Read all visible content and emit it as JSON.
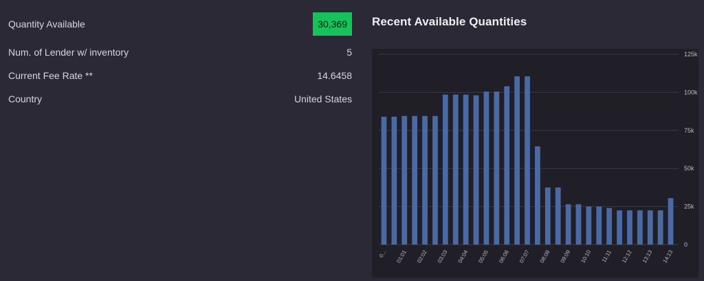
{
  "stats": [
    {
      "label": "Quantity Available",
      "value": "30,369",
      "highlight": true
    },
    {
      "label": "Num. of Lender w/ inventory",
      "value": "5"
    },
    {
      "label": "Current Fee Rate **",
      "value": "14.6458"
    },
    {
      "label": "Country",
      "value": "United States"
    }
  ],
  "colors": {
    "accent": "#16c35b",
    "bar": "#4a6aa6",
    "background": "#2a2935",
    "plot_bg": "#201f28"
  },
  "chart_data": {
    "type": "bar",
    "title": "Recent Available Quantities",
    "categories": [
      "0...",
      "",
      "01:01",
      "",
      "02:02",
      "",
      "03:03",
      "",
      "04:04",
      "",
      "05:05",
      "",
      "06:06",
      "",
      "07:07",
      "",
      "08:08",
      "",
      "09:09",
      "",
      "10:10",
      "",
      "11:11",
      "",
      "12:12",
      "",
      "13:13",
      "",
      "14:13"
    ],
    "values": [
      84000,
      84000,
      84500,
      84500,
      84500,
      84500,
      98500,
      98500,
      98500,
      98000,
      100500,
      100500,
      104000,
      110500,
      110500,
      64500,
      37500,
      37500,
      26500,
      26500,
      25000,
      25000,
      24000,
      22500,
      22500,
      22500,
      22500,
      22500,
      30500
    ],
    "ylim": [
      0,
      125000
    ],
    "yticks": [
      "0",
      "25k",
      "50k",
      "75k",
      "100k",
      "125k"
    ],
    "grid": true,
    "xlabel": "",
    "ylabel": ""
  }
}
